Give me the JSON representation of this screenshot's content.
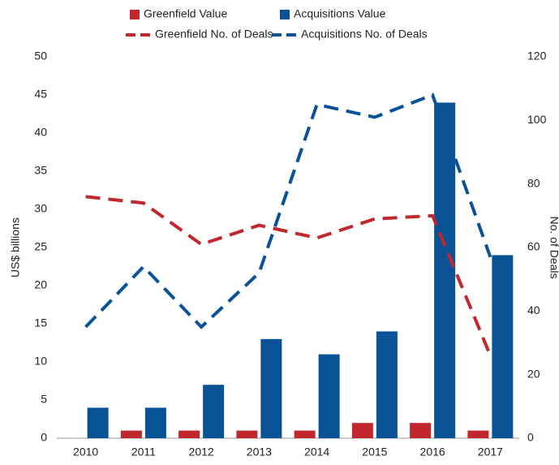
{
  "chart_data": {
    "type": "bar-line",
    "categories": [
      "2010",
      "2011",
      "2012",
      "2013",
      "2014",
      "2015",
      "2016",
      "2017"
    ],
    "ylabel": "US$ billions",
    "y2label": "No. of Deals",
    "ylim": [
      0,
      50
    ],
    "yticks": [
      0,
      5,
      10,
      15,
      20,
      25,
      30,
      35,
      40,
      45,
      50
    ],
    "y2lim": [
      0,
      120
    ],
    "y2ticks": [
      0,
      20,
      40,
      60,
      80,
      100,
      120
    ],
    "series": [
      {
        "name": "Greenfield Value",
        "type": "bar",
        "color": "#c1272d",
        "values": [
          0,
          1,
          1,
          1,
          1,
          2,
          2,
          1
        ]
      },
      {
        "name": "Acquisitions Value",
        "type": "bar",
        "color": "#0a5296",
        "values": [
          4,
          4,
          7,
          13,
          11,
          14,
          44,
          24
        ]
      },
      {
        "name": "Greenfield No. of Deals",
        "type": "line",
        "axis": "y2",
        "color": "#c1272d",
        "values": [
          76,
          74,
          61,
          67,
          63,
          69,
          70,
          26
        ]
      },
      {
        "name": "Acquisitions No. of Deals",
        "type": "line",
        "axis": "y2",
        "color": "#0a5296",
        "values": [
          35,
          54,
          35,
          52,
          105,
          101,
          108,
          57
        ]
      }
    ]
  }
}
